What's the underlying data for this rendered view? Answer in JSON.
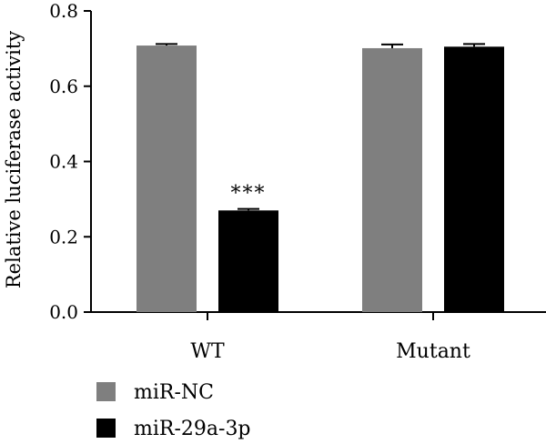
{
  "chart_data": {
    "type": "bar",
    "title": "",
    "xlabel": "",
    "ylabel": "Relative luciferase activity",
    "ylim": [
      0,
      0.8
    ],
    "yticks": [
      "0.0",
      "0.2",
      "0.4",
      "0.6",
      "0.8"
    ],
    "categories": [
      "WT",
      "Mutant"
    ],
    "series": [
      {
        "name": "miR-NC",
        "values": [
          0.708,
          0.701
        ],
        "errors": [
          0.004,
          0.01
        ],
        "color": "#7f7f7f"
      },
      {
        "name": "miR-29a-3p",
        "values": [
          0.27,
          0.705
        ],
        "errors": [
          0.004,
          0.007
        ],
        "color": "#000000"
      }
    ],
    "annotations": [
      {
        "category": "WT",
        "series": "miR-29a-3p",
        "text": "***"
      }
    ],
    "grid": false,
    "legend_position": "bottom-left"
  }
}
